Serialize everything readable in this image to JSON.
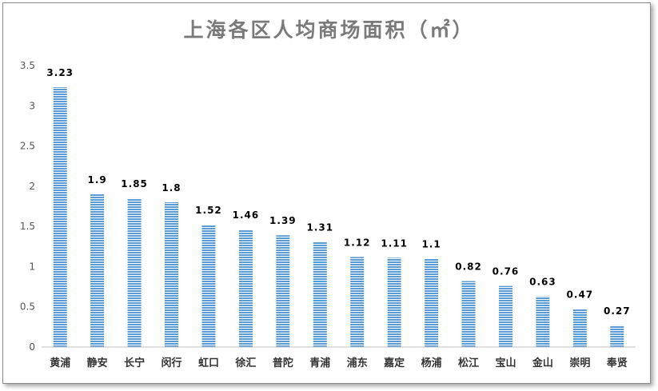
{
  "chart_data": {
    "type": "bar",
    "title": "上海各区人均商场面积（㎡）",
    "categories": [
      "黄浦",
      "静安",
      "长宁",
      "闵行",
      "虹口",
      "徐汇",
      "普陀",
      "青浦",
      "浦东",
      "嘉定",
      "杨浦",
      "松江",
      "宝山",
      "金山",
      "崇明",
      "奉贤"
    ],
    "values": [
      3.23,
      1.9,
      1.85,
      1.8,
      1.52,
      1.46,
      1.39,
      1.31,
      1.12,
      1.11,
      1.1,
      0.82,
      0.76,
      0.63,
      0.47,
      0.27
    ],
    "data_labels": [
      "3.23",
      "1.9",
      "1.85",
      "1.8",
      "1.52",
      "1.46",
      "1.39",
      "1.31",
      "1.12",
      "1.11",
      "1.1",
      "0.82",
      "0.76",
      "0.63",
      "0.47",
      "0.27"
    ],
    "ylim": [
      0,
      3.5
    ],
    "yticks": [
      0,
      0.5,
      1,
      1.5,
      2,
      2.5,
      3,
      3.5
    ],
    "ytick_labels": [
      "0",
      "0.5",
      "1",
      "1.5",
      "2",
      "2.5",
      "3",
      "3.5"
    ],
    "grid": false,
    "bar_color": "#5b9bd5",
    "axis_color": "#bfbfbf"
  }
}
